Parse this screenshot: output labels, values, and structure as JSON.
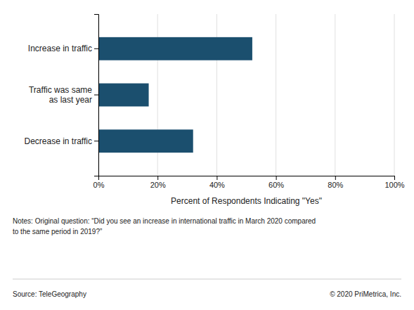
{
  "chart_data": {
    "type": "bar",
    "orientation": "horizontal",
    "categories": [
      "Decrease in traffic",
      "Traffic was same\nas last year",
      "Increase in traffic"
    ],
    "values": [
      32,
      17,
      52
    ],
    "color": "#1b4f6e",
    "xlabel": "Percent of Respondents Indicating \"Yes\"",
    "xlim": [
      0,
      100
    ],
    "xticks": [
      {
        "value": 0,
        "label": "0%"
      },
      {
        "value": 20,
        "label": "20%"
      },
      {
        "value": 40,
        "label": "40%"
      },
      {
        "value": 60,
        "label": "60%"
      },
      {
        "value": 80,
        "label": "80%"
      },
      {
        "value": 100,
        "label": "100%"
      }
    ],
    "grid": true,
    "annotations": [
      "Notes: Original question: “Did you see an increase in international traffic in March 2020 compared\nto the same period in 2019?”",
      "Source: TeleGeography",
      "© 2020 PriMetrica, Inc."
    ]
  }
}
